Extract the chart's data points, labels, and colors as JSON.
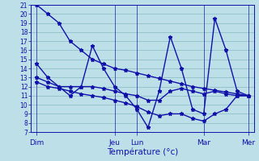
{
  "xlabel": "Température (°c)",
  "background_color": "#bde0e8",
  "grid_color": "#90bec8",
  "line_color": "#1111aa",
  "ylim": [
    7,
    21
  ],
  "yticks": [
    7,
    8,
    9,
    10,
    11,
    12,
    13,
    14,
    15,
    16,
    17,
    18,
    19,
    20,
    21
  ],
  "day_labels": [
    "Dim",
    "Jeu",
    "Lun",
    "Mar",
    "Mer"
  ],
  "day_positions": [
    0,
    7,
    9,
    15,
    19
  ],
  "n_points": 20,
  "series1": [
    21,
    20,
    19,
    17,
    16,
    15,
    14.5,
    14.0,
    13.8,
    13.5,
    13.2,
    12.9,
    12.6,
    12.3,
    12.0,
    11.8,
    11.6,
    11.4,
    11.2,
    11.0
  ],
  "series2": [
    14.5,
    13.0,
    12.0,
    11.0,
    12.0,
    16.5,
    14.0,
    12.0,
    11.0,
    9.5,
    7.5,
    11.5,
    17.5,
    14.0,
    9.5,
    9.0,
    19.5,
    16.0,
    11.5,
    11.0
  ],
  "series3": [
    13.0,
    12.5,
    12.0,
    12.0,
    12.0,
    12.0,
    11.8,
    11.5,
    11.2,
    11.0,
    10.5,
    10.5,
    11.5,
    11.8,
    11.5,
    11.2,
    11.5,
    11.2,
    11.0,
    11.0
  ],
  "series4": [
    12.5,
    12.0,
    11.8,
    11.5,
    11.2,
    11.0,
    10.8,
    10.5,
    10.2,
    9.8,
    9.2,
    8.8,
    9.0,
    9.0,
    8.5,
    8.2,
    9.0,
    9.5,
    11.0,
    11.0
  ]
}
